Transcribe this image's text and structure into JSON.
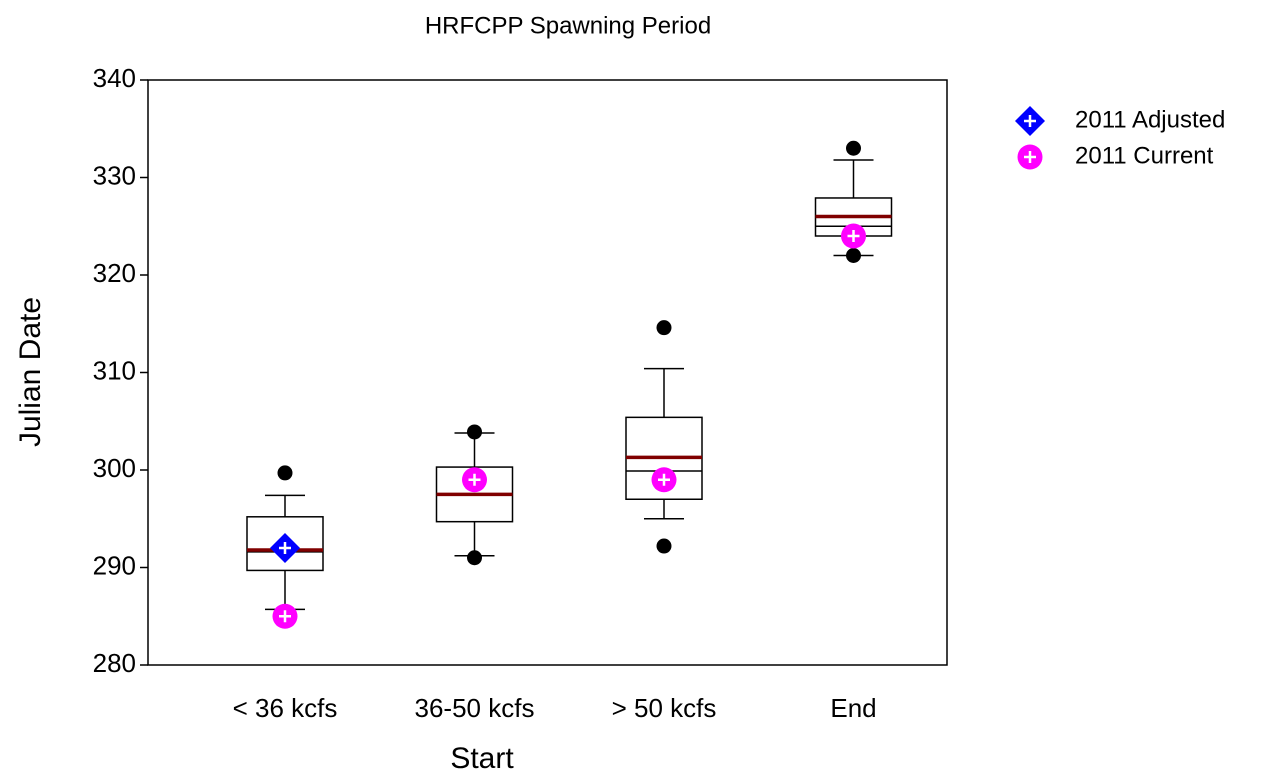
{
  "chart_data": {
    "type": "box",
    "title": "HRFCPP Spawning Period",
    "xlabel": "Start",
    "ylabel": "Julian Date",
    "categories": [
      "< 36 kcfs",
      "36-50 kcfs",
      "> 50 kcfs",
      "End"
    ],
    "boxes": [
      {
        "whislo": 285.7,
        "q1": 289.7,
        "med": 291.6,
        "mean": 291.8,
        "q3": 295.2,
        "whishi": 297.4,
        "fliers": [
          299.7
        ]
      },
      {
        "whislo": 291.2,
        "q1": 294.7,
        "med": 297.5,
        "mean": 297.5,
        "q3": 300.3,
        "whishi": 303.8,
        "fliers": [
          291,
          303.9
        ]
      },
      {
        "whislo": 295,
        "q1": 297,
        "med": 299.9,
        "mean": 301.3,
        "q3": 305.4,
        "whishi": 310.4,
        "fliers": [
          292.2,
          314.6
        ]
      },
      {
        "whislo": 322,
        "q1": 324,
        "med": 325,
        "mean": 326,
        "q3": 327.9,
        "whishi": 331.8,
        "fliers": [
          322,
          333
        ]
      }
    ],
    "median_color": "#000000",
    "mean_color": "#800000",
    "series": [
      {
        "name": "2011 Adjusted",
        "color": "#0000ff",
        "marker": "diamond",
        "values": [
          292,
          null,
          null,
          null
        ]
      },
      {
        "name": "2011 Current",
        "color": "#ff00ff",
        "marker": "circle",
        "values": [
          285,
          299,
          299,
          324
        ]
      }
    ],
    "ylim": [
      280,
      340
    ],
    "yticks": [
      280,
      290,
      300,
      310,
      320,
      330,
      340
    ]
  }
}
